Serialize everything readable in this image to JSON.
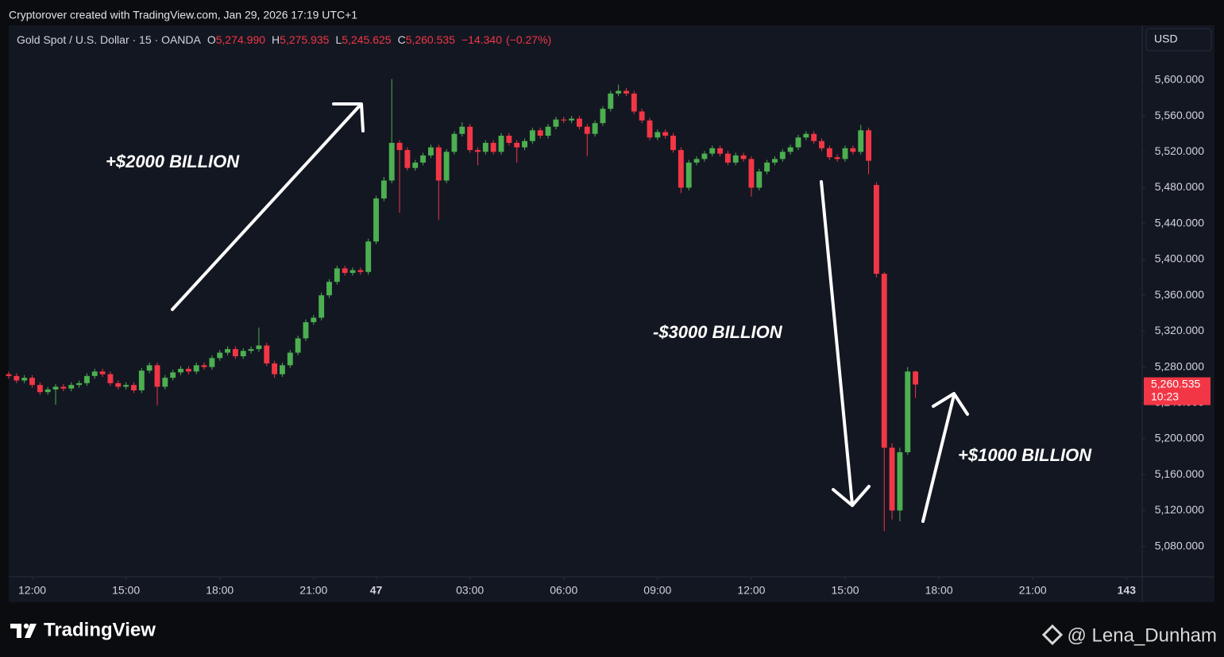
{
  "chart_data": {
    "type": "candlestick",
    "caption": "Cryptorover created with TradingView.com, Jan 29, 2026 17:19 UTC+1",
    "legend": {
      "symbol": "Gold Spot / U.S. Dollar · 15 · OANDA",
      "open_label": "O",
      "open": {
        "value": 5274.99,
        "label": "5,274.990"
      },
      "high_label": "H",
      "high": {
        "value": 5275.935,
        "label": "5,275.935"
      },
      "low_label": "L",
      "low": {
        "value": 5245.625,
        "label": "5,245.625"
      },
      "close_label": "C",
      "close": {
        "value": 5260.535,
        "label": "5,260.535"
      },
      "change": {
        "value": -14.34,
        "label": "−14.340"
      },
      "change_pct": {
        "value": -0.27,
        "label": "(−0.27%)"
      }
    },
    "currency": "USD",
    "last_price": {
      "value": 5260.535,
      "label": "5,260.535"
    },
    "countdown": "10:23",
    "annotations": [
      "+$2000 BILLION",
      "-$3000 BILLION",
      "+$1000 BILLION"
    ],
    "up_color": "#4caf50",
    "down_color": "#f23645",
    "grid": false,
    "xlim": [
      0,
      145
    ],
    "xticks": [
      {
        "value": 3,
        "label": "12:00"
      },
      {
        "value": 15,
        "label": "15:00"
      },
      {
        "value": 27,
        "label": "18:00"
      },
      {
        "value": 39,
        "label": "21:00"
      },
      47,
      {
        "value": 59,
        "label": "03:00"
      },
      {
        "value": 71,
        "label": "06:00"
      },
      {
        "value": 83,
        "label": "09:00"
      },
      {
        "value": 95,
        "label": "12:00"
      },
      {
        "value": 107,
        "label": "15:00"
      },
      {
        "value": 119,
        "label": "18:00"
      },
      {
        "value": 131,
        "label": "21:00"
      },
      143
    ],
    "ylim": [
      5046,
      5661
    ],
    "yticks": [
      {
        "value": 5080,
        "label": "5,080.000"
      },
      {
        "value": 5120,
        "label": "5,120.000"
      },
      {
        "value": 5160,
        "label": "5,160.000"
      },
      {
        "value": 5200,
        "label": "5,200.000"
      },
      {
        "value": 5240,
        "label": "5,240.000"
      },
      {
        "value": 5280,
        "label": "5,280.000"
      },
      {
        "value": 5320,
        "label": "5,320.000"
      },
      {
        "value": 5360,
        "label": "5,360.000"
      },
      {
        "value": 5400,
        "label": "5,400.000"
      },
      {
        "value": 5440,
        "label": "5,440.000"
      },
      {
        "value": 5480,
        "label": "5,480.000"
      },
      {
        "value": 5520,
        "label": "5,520.000"
      },
      {
        "value": 5560,
        "label": "5,560.000"
      },
      {
        "value": 5600,
        "label": "5,600.000"
      }
    ],
    "x": [
      0,
      1,
      2,
      3,
      4,
      5,
      6,
      7,
      8,
      9,
      10,
      11,
      12,
      13,
      14,
      15,
      16,
      17,
      18,
      19,
      20,
      21,
      22,
      23,
      24,
      25,
      26,
      27,
      28,
      29,
      30,
      31,
      32,
      33,
      34,
      35,
      36,
      37,
      38,
      39,
      40,
      41,
      42,
      43,
      44,
      45,
      46,
      47,
      48,
      49,
      50,
      51,
      52,
      53,
      54,
      55,
      56,
      57,
      58,
      59,
      60,
      61,
      62,
      63,
      64,
      65,
      66,
      67,
      68,
      69,
      70,
      71,
      72,
      73,
      74,
      75,
      76,
      77,
      78,
      79,
      80,
      81,
      82,
      83,
      84,
      85,
      86,
      87,
      88,
      89,
      90,
      91,
      92,
      93,
      94,
      95,
      96,
      97,
      98,
      99,
      100,
      101,
      102,
      103,
      104,
      105,
      106,
      107,
      108,
      109,
      110,
      111,
      112,
      113,
      114,
      115,
      116
    ],
    "open": [
      5272,
      5270,
      5265,
      5268,
      5260,
      5252,
      5255,
      5258,
      5256,
      5260,
      5262,
      5270,
      5275,
      5272,
      5262,
      5258,
      5260,
      5254,
      5276,
      5282,
      5258,
      5268,
      5274,
      5278,
      5275,
      5282,
      5280,
      5290,
      5296,
      5300,
      5292,
      5298,
      5300,
      5304,
      5284,
      5272,
      5282,
      5296,
      5312,
      5330,
      5335,
      5360,
      5375,
      5390,
      5385,
      5388,
      5386,
      5420,
      5468,
      5488,
      5530,
      5522,
      5502,
      5508,
      5516,
      5525,
      5488,
      5520,
      5540,
      5548,
      5522,
      5520,
      5530,
      5520,
      5538,
      5530,
      5525,
      5532,
      5544,
      5538,
      5548,
      5556,
      5555,
      5557,
      5548,
      5540,
      5552,
      5568,
      5585,
      5588,
      5585,
      5565,
      5555,
      5536,
      5542,
      5538,
      5522,
      5480,
      5508,
      5512,
      5518,
      5524,
      5518,
      5508,
      5516,
      5512,
      5480,
      5498,
      5508,
      5512,
      5520,
      5525,
      5536,
      5540,
      5532,
      5524,
      5514,
      5512,
      5524,
      5520,
      5544,
      5483,
      5384,
      5190,
      5120,
      5185,
      5274.99
    ],
    "high": [
      5275,
      5273,
      5271,
      5271,
      5263,
      5258,
      5261,
      5261,
      5263,
      5265,
      5273,
      5278,
      5278,
      5275,
      5265,
      5263,
      5263,
      5279,
      5285,
      5285,
      5271,
      5277,
      5281,
      5281,
      5285,
      5285,
      5293,
      5299,
      5303,
      5303,
      5301,
      5303,
      5324,
      5307,
      5287,
      5285,
      5299,
      5315,
      5333,
      5338,
      5363,
      5378,
      5393,
      5393,
      5391,
      5391,
      5423,
      5471,
      5492,
      5601,
      5533,
      5525,
      5511,
      5519,
      5528,
      5528,
      5523,
      5543,
      5553,
      5551,
      5525,
      5533,
      5533,
      5541,
      5541,
      5533,
      5535,
      5547,
      5547,
      5551,
      5559,
      5559,
      5560,
      5560,
      5551,
      5555,
      5571,
      5588,
      5595,
      5591,
      5588,
      5568,
      5558,
      5545,
      5545,
      5541,
      5525,
      5511,
      5515,
      5521,
      5527,
      5527,
      5521,
      5519,
      5519,
      5515,
      5501,
      5511,
      5515,
      5523,
      5528,
      5539,
      5543,
      5543,
      5535,
      5527,
      5517,
      5527,
      5527,
      5550,
      5547,
      5486,
      5386,
      5195,
      5190,
      5280,
      5275.935
    ],
    "low": [
      5267,
      5262,
      5262,
      5257,
      5249,
      5249,
      5238,
      5253,
      5253,
      5257,
      5259,
      5267,
      5269,
      5259,
      5255,
      5255,
      5251,
      5251,
      5273,
      5237,
      5255,
      5265,
      5271,
      5272,
      5272,
      5277,
      5277,
      5287,
      5293,
      5289,
      5289,
      5295,
      5297,
      5281,
      5268,
      5269,
      5279,
      5293,
      5309,
      5327,
      5332,
      5357,
      5372,
      5382,
      5382,
      5383,
      5383,
      5417,
      5465,
      5485,
      5452,
      5499,
      5499,
      5505,
      5513,
      5444,
      5485,
      5517,
      5537,
      5519,
      5505,
      5517,
      5517,
      5517,
      5527,
      5508,
      5522,
      5529,
      5535,
      5535,
      5545,
      5552,
      5552,
      5545,
      5515,
      5537,
      5549,
      5565,
      5582,
      5582,
      5562,
      5552,
      5533,
      5533,
      5535,
      5519,
      5474,
      5477,
      5505,
      5509,
      5515,
      5515,
      5505,
      5505,
      5509,
      5470,
      5477,
      5495,
      5505,
      5509,
      5517,
      5522,
      5533,
      5529,
      5521,
      5511,
      5509,
      5509,
      5517,
      5517,
      5495,
      5380,
      5097,
      5110,
      5108,
      5182,
      5245.625
    ],
    "close": [
      5270,
      5265,
      5268,
      5260,
      5252,
      5255,
      5258,
      5256,
      5260,
      5262,
      5270,
      5275,
      5272,
      5262,
      5258,
      5260,
      5254,
      5276,
      5282,
      5258,
      5268,
      5274,
      5278,
      5275,
      5282,
      5280,
      5290,
      5296,
      5300,
      5292,
      5298,
      5300,
      5304,
      5284,
      5272,
      5282,
      5296,
      5312,
      5330,
      5335,
      5360,
      5375,
      5390,
      5385,
      5388,
      5386,
      5420,
      5468,
      5488,
      5530,
      5522,
      5502,
      5508,
      5516,
      5525,
      5488,
      5520,
      5540,
      5548,
      5522,
      5520,
      5530,
      5520,
      5538,
      5530,
      5525,
      5532,
      5544,
      5538,
      5548,
      5556,
      5555,
      5557,
      5548,
      5540,
      5552,
      5568,
      5585,
      5588,
      5585,
      5565,
      5555,
      5536,
      5542,
      5538,
      5522,
      5480,
      5508,
      5512,
      5518,
      5524,
      5518,
      5508,
      5516,
      5512,
      5480,
      5498,
      5508,
      5512,
      5520,
      5525,
      5536,
      5540,
      5532,
      5524,
      5514,
      5512,
      5524,
      5520,
      5544,
      5510,
      5384,
      5190,
      5120,
      5185,
      5275,
      5260.535
    ]
  },
  "footer": {
    "brand": "TradingView",
    "watermark": "@ Lena_Dunham"
  }
}
